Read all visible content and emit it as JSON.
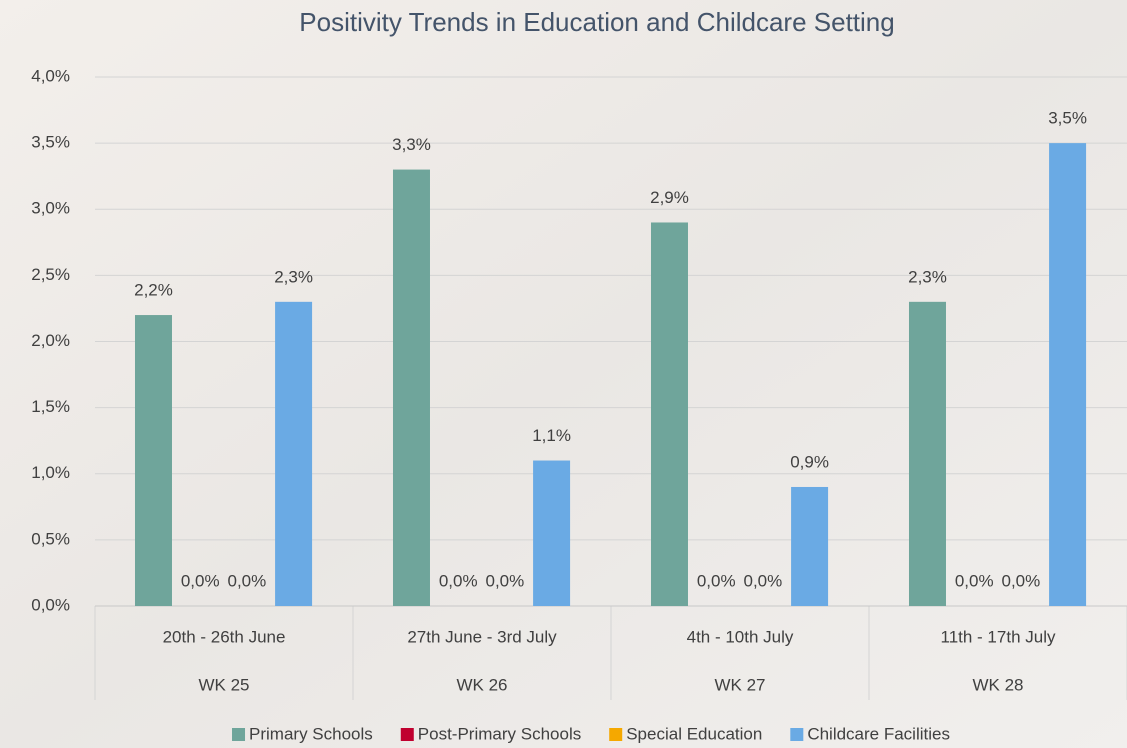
{
  "chart_data": {
    "type": "bar",
    "title": "Positivity Trends in Education and Childcare Setting",
    "categories": [
      "20th - 26th June",
      "27th June - 3rd July",
      "4th - 10th July",
      "11th - 17th July"
    ],
    "category_groups": [
      "WK 25",
      "WK 26",
      "WK 27",
      "WK 28"
    ],
    "series": [
      {
        "name": "Primary Schools",
        "color": "#6fa59b",
        "values": [
          2.2,
          3.3,
          2.9,
          2.3
        ],
        "value_labels": [
          "2,2%",
          "3,3%",
          "2,9%",
          "2,3%"
        ]
      },
      {
        "name": "Post-Primary Schools",
        "color": "#c0002f",
        "values": [
          0,
          0,
          0,
          0
        ],
        "value_labels": [
          "0,0%",
          "0,0%",
          "0,0%",
          "0,0%"
        ]
      },
      {
        "name": "Special Education",
        "color": "#f5a800",
        "values": [
          0,
          0,
          0,
          0
        ],
        "value_labels": [
          "0,0%",
          "0,0%",
          "0,0%",
          "0,0%"
        ]
      },
      {
        "name": "Childcare Facilities",
        "color": "#6aaae4",
        "values": [
          2.3,
          1.1,
          0.9,
          3.5
        ],
        "value_labels": [
          "2,3%",
          "1,1%",
          "0,9%",
          "3,5%"
        ]
      }
    ],
    "ylim": [
      0,
      4
    ],
    "yticks": [
      {
        "value": 0,
        "label": "0,0%"
      },
      {
        "value": 0.5,
        "label": "0,5%"
      },
      {
        "value": 1,
        "label": "1,0%"
      },
      {
        "value": 1.5,
        "label": "1,5%"
      },
      {
        "value": 2,
        "label": "2,0%"
      },
      {
        "value": 2.5,
        "label": "2,5%"
      },
      {
        "value": 3,
        "label": "3,0%"
      },
      {
        "value": 3.5,
        "label": "3,5%"
      },
      {
        "value": 4,
        "label": "4,0%"
      }
    ],
    "grid": true,
    "legend": "bottom"
  }
}
